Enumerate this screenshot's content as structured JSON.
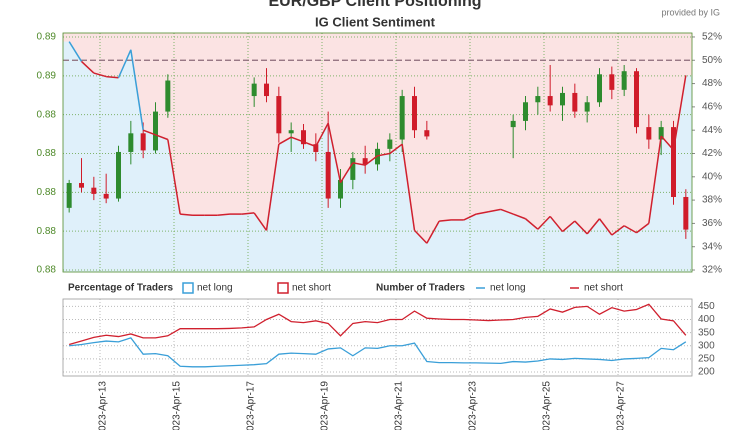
{
  "chart_data": [
    {
      "type": "candlestick",
      "title": "EUR/GBP Client Positioning",
      "subtitle": "IG Client Sentiment",
      "source": "provided by IG",
      "legend_title": "Percentage of Traders",
      "up_color": "#2e8b2e",
      "down_color": "#d01c2a",
      "open": [
        0.879,
        0.8806,
        0.8803,
        0.8799,
        0.8796,
        0.8826,
        0.8838,
        0.8827,
        0.8852,
        null,
        null,
        null,
        null,
        null,
        null,
        0.8862,
        0.887,
        0.8862,
        0.8838,
        0.884,
        0.8831,
        0.8826,
        0.8796,
        0.8808,
        0.8822,
        0.8818,
        0.8828,
        0.8834,
        0.8862,
        0.884,
        null,
        null,
        null,
        null,
        null,
        null,
        0.8842,
        0.8846,
        0.8858,
        0.8862,
        0.8856,
        0.8864,
        0.8852,
        0.8858,
        0.8876,
        0.8866,
        0.8878,
        0.8842,
        0.8834,
        0.8842,
        0.8797
      ],
      "high": [
        0.8808,
        0.8822,
        0.881,
        0.8812,
        0.883,
        0.8846,
        0.8845,
        0.8858,
        0.8876,
        null,
        null,
        null,
        null,
        null,
        null,
        0.8874,
        0.888,
        0.8868,
        0.8845,
        0.8844,
        0.8838,
        0.8852,
        0.8815,
        0.8826,
        0.883,
        0.8832,
        0.8838,
        0.8866,
        0.8868,
        0.8846,
        null,
        null,
        null,
        null,
        null,
        null,
        0.885,
        0.8862,
        0.8868,
        0.8882,
        0.8868,
        0.887,
        0.8862,
        0.888,
        0.8881,
        0.8882,
        0.888,
        0.885,
        0.8846,
        0.8846,
        0.8802
      ],
      "low": [
        0.8787,
        0.88,
        0.8795,
        0.8793,
        0.8794,
        0.8818,
        0.8822,
        0.8825,
        0.8848,
        null,
        null,
        null,
        null,
        null,
        null,
        0.8855,
        0.8858,
        0.8832,
        0.8826,
        0.8828,
        0.882,
        0.879,
        0.879,
        0.8802,
        0.8812,
        0.8814,
        0.882,
        0.8826,
        0.8835,
        0.8834,
        null,
        null,
        null,
        null,
        null,
        null,
        0.8822,
        0.884,
        0.885,
        0.8852,
        0.8846,
        0.8848,
        0.8845,
        0.8855,
        0.886,
        0.8862,
        0.8838,
        0.8828,
        0.8824,
        0.8792,
        0.877
      ],
      "close": [
        0.8806,
        0.8803,
        0.8799,
        0.8796,
        0.8826,
        0.8838,
        0.8827,
        0.8852,
        0.8872,
        null,
        null,
        null,
        null,
        null,
        null,
        0.887,
        0.8862,
        0.8838,
        0.884,
        0.8831,
        0.8826,
        0.8796,
        0.8808,
        0.8822,
        0.8818,
        0.8828,
        0.8834,
        0.8862,
        0.884,
        0.8836,
        null,
        null,
        null,
        null,
        null,
        null,
        0.8846,
        0.8858,
        0.8862,
        0.8856,
        0.8864,
        0.8852,
        0.8858,
        0.8876,
        0.8866,
        0.8878,
        0.8842,
        0.8834,
        0.8842,
        0.8797,
        0.8776
      ],
      "ylim": [
        0.87487,
        0.89026
      ],
      "yticks": [
        0.89,
        {
          "value": 0.8875,
          "label": "0.89"
        },
        {
          "value": 0.885,
          "label": "0.88"
        },
        {
          "value": 0.8825,
          "label": "0.88"
        },
        {
          "value": 0.88,
          "label": "0.88"
        },
        {
          "value": 0.8775,
          "label": "0.88"
        },
        {
          "value": 0.875,
          "label": "0.88"
        }
      ],
      "y2lim": [
        31.83,
        52.34
      ],
      "y2ticks": [
        {
          "value": 52,
          "label": "52%"
        },
        {
          "value": 50,
          "label": "50%"
        },
        {
          "value": 48,
          "label": "48%"
        },
        {
          "value": 46,
          "label": "46%"
        },
        {
          "value": 44,
          "label": "44%"
        },
        {
          "value": 42,
          "label": "42%"
        },
        {
          "value": 40,
          "label": "40%"
        },
        {
          "value": 38,
          "label": "38%"
        },
        {
          "value": 36,
          "label": "36%"
        },
        {
          "value": 34,
          "label": "34%"
        },
        {
          "value": 32,
          "label": "32%"
        }
      ],
      "ref_line": 50,
      "grid": true,
      "series": [
        {
          "name": "net long",
          "color": "#3a9fd8",
          "fill": "#dff0fa",
          "axis": "y2",
          "values": [
            51.6,
            49.9,
            48.9,
            48.6,
            48.5,
            50.9,
            44.0,
            43.6,
            43.2,
            36.8,
            36.7,
            36.7,
            36.7,
            36.8,
            36.8,
            36.9,
            35.4,
            42.8,
            43.4,
            43.0,
            42.6,
            44.6,
            39.5,
            41.2,
            41.0,
            41.8,
            42.0,
            42.8,
            35.4,
            34.3,
            36.2,
            36.3,
            36.3,
            36.8,
            37.0,
            37.2,
            36.8,
            36.4,
            35.5,
            36.6,
            35.3,
            36.2,
            35.1,
            36.4,
            35.0,
            35.8,
            35.2,
            36.0,
            43.5,
            42.3,
            48.7
          ]
        }
      ],
      "complement": {
        "name": "net short",
        "color": "#d0202e",
        "fill": "#fbe3e3"
      }
    },
    {
      "type": "line",
      "legend_title": "Number of Traders",
      "categories": [
        null,
        null,
        null,
        "2023-Apr-13",
        null,
        null,
        null,
        null,
        null,
        "2023-Apr-15",
        null,
        null,
        null,
        null,
        null,
        "2023-Apr-17",
        null,
        null,
        null,
        null,
        null,
        "2023-Apr-19",
        null,
        null,
        null,
        null,
        null,
        "2023-Apr-21",
        null,
        null,
        null,
        null,
        null,
        "2023-Apr-23",
        null,
        null,
        null,
        null,
        null,
        "2023-Apr-25",
        null,
        null,
        null,
        null,
        null,
        "2023-Apr-27",
        null,
        null,
        null,
        null,
        null
      ],
      "ylim": [
        185,
        478
      ],
      "yticks": [
        450,
        400,
        350,
        300,
        250,
        200
      ],
      "grid": true,
      "series": [
        {
          "name": "net long",
          "color": "#3a9fd8",
          "values": [
            300,
            305,
            312,
            318,
            315,
            330,
            268,
            270,
            262,
            222,
            220,
            220,
            222,
            224,
            226,
            228,
            232,
            268,
            272,
            270,
            268,
            288,
            292,
            262,
            292,
            290,
            300,
            300,
            310,
            240,
            236,
            236,
            235,
            235,
            234,
            233,
            240,
            238,
            242,
            250,
            248,
            252,
            250,
            248,
            244,
            250,
            252,
            255,
            290,
            285,
            315
          ]
        },
        {
          "name": "net short",
          "color": "#d0202e",
          "values": [
            305,
            318,
            332,
            340,
            335,
            345,
            330,
            330,
            338,
            365,
            365,
            365,
            365,
            366,
            368,
            372,
            400,
            420,
            392,
            388,
            395,
            385,
            338,
            385,
            392,
            388,
            400,
            400,
            432,
            405,
            402,
            400,
            400,
            398,
            396,
            398,
            400,
            408,
            412,
            440,
            428,
            446,
            450,
            420,
            445,
            432,
            438,
            458,
            402,
            395,
            340
          ]
        }
      ]
    }
  ]
}
